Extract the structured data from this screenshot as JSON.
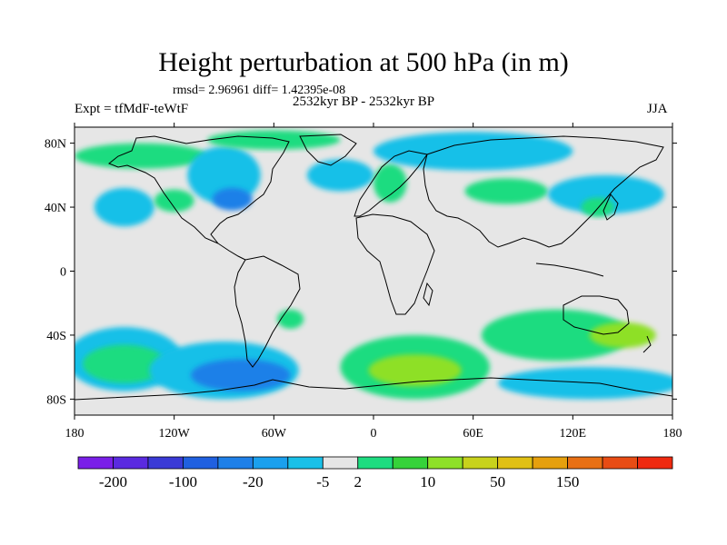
{
  "chart_data": {
    "type": "heatmap",
    "title": "Height perturbation at 500 hPa (in m)",
    "stats_text": "rmsd= 2.96961 diff= 1.42395e-08",
    "left_label": "Expt = tfMdF-teWtF",
    "center_label": "2532kyr BP - 2532kyr BP",
    "right_label": "JJA",
    "xlim": [
      -180,
      180
    ],
    "ylim": [
      -90,
      90
    ],
    "x_ticks": [
      {
        "value": -180,
        "label": "180"
      },
      {
        "value": -120,
        "label": "120W"
      },
      {
        "value": -60,
        "label": "60W"
      },
      {
        "value": 0,
        "label": "0"
      },
      {
        "value": 60,
        "label": "60E"
      },
      {
        "value": 120,
        "label": "120E"
      },
      {
        "value": 180,
        "label": "180"
      }
    ],
    "y_ticks": [
      {
        "value": 80,
        "label": "80N"
      },
      {
        "value": 40,
        "label": "40N"
      },
      {
        "value": 0,
        "label": "0"
      },
      {
        "value": -40,
        "label": "40S"
      },
      {
        "value": -80,
        "label": "80S"
      }
    ],
    "colorbar": {
      "colors": [
        "#7a1fe8",
        "#5a2ae0",
        "#3a3ad6",
        "#2060e0",
        "#1f80e8",
        "#1aa0ee",
        "#19c0e8",
        "#e6e6e6",
        "#1edc80",
        "#36d23a",
        "#8ee028",
        "#c8d21c",
        "#e0c014",
        "#e6a00e",
        "#e87014",
        "#e84c14",
        "#ef2a10"
      ],
      "tick_labels": [
        "-200",
        "-100",
        "-20",
        "-5",
        "2",
        "10",
        "50",
        "150"
      ],
      "tick_boundary_index": [
        1,
        3,
        5,
        7,
        8,
        10,
        12,
        14
      ]
    },
    "anomaly_regions": [
      {
        "lon": -150,
        "lat": 40,
        "rlon": 18,
        "rlat": 12,
        "level": "low1"
      },
      {
        "lon": -140,
        "lat": 72,
        "rlon": 40,
        "rlat": 8,
        "level": "high1"
      },
      {
        "lon": -120,
        "lat": 44,
        "rlon": 12,
        "rlat": 7,
        "level": "high1"
      },
      {
        "lon": -90,
        "lat": 60,
        "rlon": 22,
        "rlat": 18,
        "level": "low1"
      },
      {
        "lon": -85,
        "lat": 45,
        "rlon": 12,
        "rlat": 7,
        "level": "low2"
      },
      {
        "lon": -60,
        "lat": 82,
        "rlon": 40,
        "rlat": 6,
        "level": "high1"
      },
      {
        "lon": -20,
        "lat": 60,
        "rlon": 20,
        "rlat": 10,
        "level": "low1"
      },
      {
        "lon": 10,
        "lat": 55,
        "rlon": 10,
        "rlat": 12,
        "level": "high1"
      },
      {
        "lon": 60,
        "lat": 75,
        "rlon": 60,
        "rlat": 12,
        "level": "low1"
      },
      {
        "lon": 80,
        "lat": 50,
        "rlon": 25,
        "rlat": 8,
        "level": "high1"
      },
      {
        "lon": 140,
        "lat": 48,
        "rlon": 35,
        "rlat": 12,
        "level": "low1"
      },
      {
        "lon": 135,
        "lat": 40,
        "rlon": 10,
        "rlat": 6,
        "level": "high1"
      },
      {
        "lon": -150,
        "lat": -55,
        "rlon": 35,
        "rlat": 20,
        "level": "low1"
      },
      {
        "lon": -150,
        "lat": -58,
        "rlon": 25,
        "rlat": 12,
        "level": "high1"
      },
      {
        "lon": -90,
        "lat": -62,
        "rlon": 45,
        "rlat": 18,
        "level": "low1"
      },
      {
        "lon": -80,
        "lat": -65,
        "rlon": 30,
        "rlat": 10,
        "level": "low2"
      },
      {
        "lon": -50,
        "lat": -30,
        "rlon": 8,
        "rlat": 6,
        "level": "high1"
      },
      {
        "lon": 25,
        "lat": -60,
        "rlon": 45,
        "rlat": 20,
        "level": "high1"
      },
      {
        "lon": 25,
        "lat": -62,
        "rlon": 28,
        "rlat": 10,
        "level": "high2"
      },
      {
        "lon": 110,
        "lat": -40,
        "rlon": 45,
        "rlat": 16,
        "level": "high1"
      },
      {
        "lon": 150,
        "lat": -40,
        "rlon": 20,
        "rlat": 8,
        "level": "high2"
      },
      {
        "lon": 130,
        "lat": -70,
        "rlon": 55,
        "rlat": 10,
        "level": "low1"
      }
    ]
  }
}
